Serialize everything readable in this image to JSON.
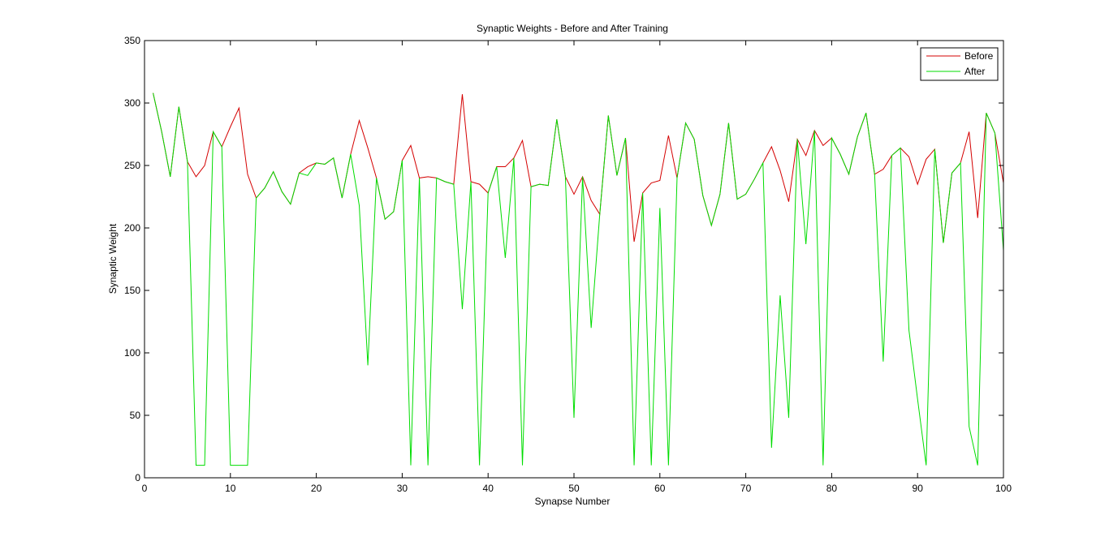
{
  "chart_data": {
    "type": "line",
    "title": "Synaptic Weights - Before and After Training",
    "xlabel": "Synapse Number",
    "ylabel": "Synaptic Weight",
    "xlim": [
      0,
      100
    ],
    "ylim": [
      0,
      350
    ],
    "xticks": [
      0,
      10,
      20,
      30,
      40,
      50,
      60,
      70,
      80,
      90,
      100
    ],
    "yticks": [
      0,
      50,
      100,
      150,
      200,
      250,
      300,
      350
    ],
    "grid": false,
    "legend_position": "top-right",
    "x": [
      1,
      2,
      3,
      4,
      5,
      6,
      7,
      8,
      9,
      10,
      11,
      12,
      13,
      14,
      15,
      16,
      17,
      18,
      19,
      20,
      21,
      22,
      23,
      24,
      25,
      26,
      27,
      28,
      29,
      30,
      31,
      32,
      33,
      34,
      35,
      36,
      37,
      38,
      39,
      40,
      41,
      42,
      43,
      44,
      45,
      46,
      47,
      48,
      49,
      50,
      51,
      52,
      53,
      54,
      55,
      56,
      57,
      58,
      59,
      60,
      61,
      62,
      63,
      64,
      65,
      66,
      67,
      68,
      69,
      70,
      71,
      72,
      73,
      74,
      75,
      76,
      77,
      78,
      79,
      80,
      81,
      82,
      83,
      84,
      85,
      86,
      87,
      88,
      89,
      90,
      91,
      92,
      93,
      94,
      95,
      96,
      97,
      98,
      99,
      100
    ],
    "series": [
      {
        "name": "Before",
        "color": "#d40000",
        "values": [
          308,
          277,
          241,
          297,
          253,
          241,
          250,
          277,
          265,
          281,
          296,
          243,
          224,
          232,
          245,
          229,
          219,
          244,
          249,
          252,
          251,
          256,
          224,
          259,
          286,
          264,
          240,
          207,
          213,
          254,
          266,
          240,
          241,
          240,
          237,
          235,
          307,
          237,
          235,
          228,
          249,
          249,
          256,
          270,
          233,
          235,
          234,
          287,
          241,
          227,
          241,
          222,
          211,
          290,
          242,
          272,
          189,
          228,
          236,
          238,
          274,
          240,
          284,
          271,
          226,
          202,
          227,
          284,
          223,
          227,
          239,
          252,
          265,
          246,
          221,
          271,
          258,
          278,
          266,
          272,
          259,
          243,
          273,
          292,
          243,
          247,
          258,
          264,
          257,
          235,
          255,
          263,
          188,
          244,
          252,
          277,
          208,
          292,
          276,
          236
        ]
      },
      {
        "name": "After",
        "color": "#00dd00",
        "values": [
          308,
          277,
          241,
          297,
          253,
          10,
          10,
          277,
          265,
          10,
          10,
          10,
          224,
          232,
          245,
          229,
          219,
          244,
          242,
          252,
          251,
          256,
          224,
          259,
          218,
          90,
          240,
          207,
          213,
          254,
          10,
          240,
          10,
          240,
          237,
          235,
          135,
          237,
          10,
          228,
          249,
          176,
          256,
          10,
          233,
          235,
          234,
          287,
          241,
          48,
          241,
          120,
          211,
          290,
          242,
          272,
          10,
          228,
          10,
          216,
          10,
          240,
          284,
          271,
          226,
          202,
          227,
          284,
          223,
          227,
          239,
          252,
          24,
          146,
          48,
          271,
          187,
          278,
          10,
          272,
          259,
          243,
          273,
          292,
          243,
          93,
          258,
          264,
          118,
          63,
          10,
          263,
          188,
          244,
          252,
          41,
          10,
          292,
          276,
          182
        ]
      }
    ]
  }
}
